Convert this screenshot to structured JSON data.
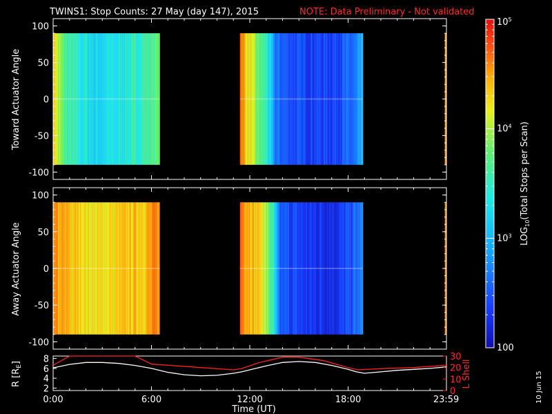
{
  "title": {
    "main": "TWINS1: Stop Counts: 27 May (day 147), 2015",
    "note": "NOTE: Data Preliminary - Not validated"
  },
  "date_stamp": "10 Jun 15",
  "colors": {
    "background": "#000000",
    "note": "#ff2a2a",
    "lshell": "#ff2020",
    "rcurve": "#ffffff"
  },
  "colorbar": {
    "label": "LOG10(Total Stops per Scan)",
    "label_prefix": "LOG",
    "label_sub": "10",
    "label_suffix": "(Total Stops per Scan)",
    "range": [
      100,
      100000
    ],
    "scale": "log",
    "ticks": [
      {
        "value": 100000,
        "base": "10",
        "exp": "5"
      },
      {
        "value": 10000,
        "base": "10",
        "exp": "4"
      },
      {
        "value": 1000,
        "base": "10",
        "exp": "3"
      },
      {
        "value": 100,
        "base": "100",
        "exp": ""
      }
    ]
  },
  "chart_data": [
    {
      "type": "heatmap",
      "panel": "toward",
      "ylabel": "Toward Actuator Angle",
      "ylim": [
        -110,
        110
      ],
      "yticks": [
        "100",
        "50",
        "0",
        "-50",
        "-100"
      ],
      "ytick_values": [
        100,
        50,
        0,
        -50,
        -100
      ],
      "xlim_hours": [
        0,
        24
      ],
      "angle_coverage": [
        -90,
        90
      ],
      "data_intervals_hours": [
        [
          0.0,
          6.5
        ],
        [
          11.4,
          18.9
        ],
        [
          23.9,
          24.0
        ]
      ],
      "level_profile": [
        {
          "t": 0.0,
          "log10": 4.4
        },
        {
          "t": 0.3,
          "log10": 4.0
        },
        {
          "t": 0.8,
          "log10": 3.6
        },
        {
          "t": 1.6,
          "log10": 3.4
        },
        {
          "t": 2.6,
          "log10": 3.2
        },
        {
          "t": 3.6,
          "log10": 3.3
        },
        {
          "t": 4.6,
          "log10": 3.4
        },
        {
          "t": 5.8,
          "log10": 3.6
        },
        {
          "t": 6.5,
          "log10": 3.8
        },
        {
          "t": 11.4,
          "log10": 4.8
        },
        {
          "t": 11.7,
          "log10": 4.4
        },
        {
          "t": 12.3,
          "log10": 3.9
        },
        {
          "t": 13.0,
          "log10": 3.5
        },
        {
          "t": 13.6,
          "log10": 2.6
        },
        {
          "t": 15.0,
          "log10": 2.4
        },
        {
          "t": 17.0,
          "log10": 2.4
        },
        {
          "t": 18.5,
          "log10": 2.6
        },
        {
          "t": 18.9,
          "log10": 3.0
        },
        {
          "t": 23.9,
          "log10": 4.6
        },
        {
          "t": 24.0,
          "log10": 4.6
        }
      ]
    },
    {
      "type": "heatmap",
      "panel": "away",
      "ylabel": "Away Actuator Angle",
      "ylim": [
        -110,
        110
      ],
      "yticks": [
        "100",
        "50",
        "0",
        "-50",
        "-100"
      ],
      "ytick_values": [
        100,
        50,
        0,
        -50,
        -100
      ],
      "xlim_hours": [
        0,
        24
      ],
      "angle_coverage": [
        -90,
        90
      ],
      "data_intervals_hours": [
        [
          0.0,
          6.5
        ],
        [
          11.4,
          18.9
        ],
        [
          23.9,
          24.0
        ]
      ],
      "level_profile": [
        {
          "t": 0.0,
          "log10": 4.5
        },
        {
          "t": 1.0,
          "log10": 4.4
        },
        {
          "t": 2.5,
          "log10": 4.2
        },
        {
          "t": 4.0,
          "log10": 4.3
        },
        {
          "t": 5.5,
          "log10": 4.4
        },
        {
          "t": 6.5,
          "log10": 4.6
        },
        {
          "t": 11.4,
          "log10": 4.7
        },
        {
          "t": 12.0,
          "log10": 4.5
        },
        {
          "t": 12.8,
          "log10": 4.2
        },
        {
          "t": 13.4,
          "log10": 3.5
        },
        {
          "t": 13.8,
          "log10": 2.5
        },
        {
          "t": 15.5,
          "log10": 2.3
        },
        {
          "t": 17.5,
          "log10": 2.3
        },
        {
          "t": 18.9,
          "log10": 2.7
        },
        {
          "t": 23.9,
          "log10": 4.7
        },
        {
          "t": 24.0,
          "log10": 4.7
        }
      ]
    },
    {
      "type": "line",
      "panel": "orbit",
      "ylabel": "R [RE]",
      "ylabel_main": "R [R",
      "ylabel_sub": "E",
      "ylabel_end": "]",
      "ylim": [
        1.5,
        8.5
      ],
      "yticks": [
        "8",
        "6",
        "4",
        "2"
      ],
      "ytick_values": [
        8,
        6,
        4,
        2
      ],
      "y2label": "L Shell",
      "y2lim": [
        0,
        30
      ],
      "y2ticks": [
        "30",
        "20",
        "10",
        "0"
      ],
      "y2tick_values": [
        30,
        20,
        10,
        0
      ],
      "xlabel": "Time (UT)",
      "xlim_hours": [
        0,
        24
      ],
      "xticks": [
        "0:00",
        "6:00",
        "12:00",
        "18:00",
        "23:59"
      ],
      "xtick_values": [
        0,
        6,
        12,
        18,
        23.983
      ],
      "series": [
        {
          "name": "R",
          "axis": "left",
          "x": [
            0,
            1,
            2,
            3,
            4,
            5,
            6,
            7,
            8,
            9,
            10,
            11,
            11.5,
            12,
            13,
            14,
            15,
            16,
            17,
            18,
            18.5,
            19,
            20,
            21,
            22,
            23,
            24
          ],
          "y": [
            6.1,
            6.8,
            7.2,
            7.2,
            7.0,
            6.6,
            6.0,
            5.2,
            4.7,
            4.5,
            4.6,
            5.0,
            5.3,
            5.7,
            6.5,
            7.2,
            7.4,
            7.2,
            6.6,
            5.8,
            5.3,
            5.0,
            5.3,
            5.6,
            5.8,
            6.0,
            6.3
          ]
        },
        {
          "name": "L Shell",
          "axis": "right",
          "x": [
            0,
            1,
            1.6,
            5.0,
            6.0,
            7.0,
            9.0,
            11.0,
            11.5,
            12.5,
            14.0,
            15.0,
            16.5,
            18.0,
            18.6,
            20.0,
            22.0,
            24.0
          ],
          "y": [
            22,
            30,
            30,
            30,
            23,
            22,
            20,
            18,
            19,
            24,
            29,
            29,
            26,
            20,
            18,
            19,
            20,
            22
          ]
        }
      ]
    }
  ]
}
